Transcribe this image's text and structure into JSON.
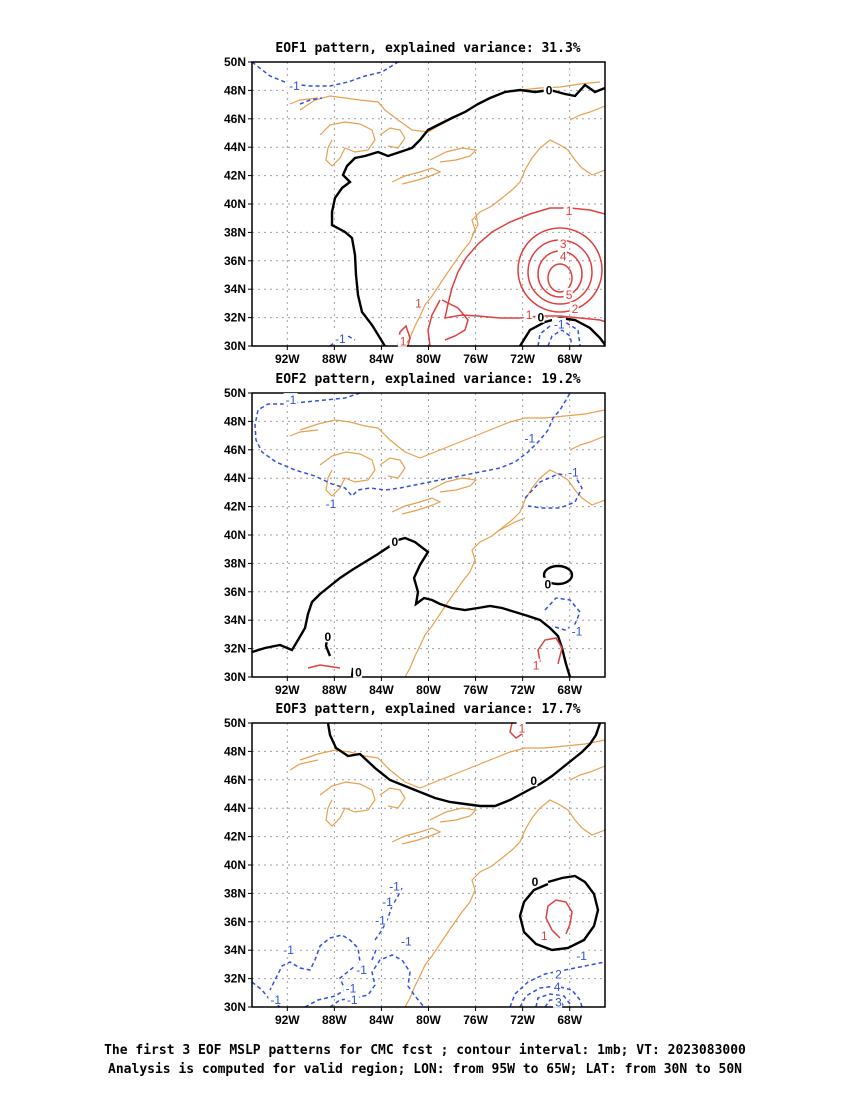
{
  "chart_data": [
    {
      "type": "contour_map",
      "title": "EOF1 pattern, explained variance: 31.3%",
      "x_ticks": [
        "92W",
        "88W",
        "84W",
        "80W",
        "76W",
        "72W",
        "68W"
      ],
      "y_ticks": [
        "30N",
        "32N",
        "34N",
        "36N",
        "38N",
        "40N",
        "42N",
        "44N",
        "46N",
        "48N",
        "50N"
      ],
      "xlim": [
        -95,
        -65
      ],
      "ylim": [
        30,
        50
      ],
      "grid": true,
      "contour_labels": [
        {
          "text": "-1",
          "color": "#3050e0",
          "lon": -91.5,
          "lat": 48.3
        },
        {
          "text": "0",
          "color": "#000000",
          "lon": -69.7,
          "lat": 48.0
        },
        {
          "text": "1",
          "color": "#e04040",
          "lon": -68.0,
          "lat": 39.5
        },
        {
          "text": "3",
          "color": "#e04040",
          "lon": -68.5,
          "lat": 37.2
        },
        {
          "text": "4",
          "color": "#e04040",
          "lon": -68.5,
          "lat": 36.3
        },
        {
          "text": "5",
          "color": "#e04040",
          "lon": -68.0,
          "lat": 33.6
        },
        {
          "text": "2",
          "color": "#e04040",
          "lon": -67.5,
          "lat": 32.6
        },
        {
          "text": "1",
          "color": "#e04040",
          "lon": -71.4,
          "lat": 32.2
        },
        {
          "text": "0",
          "color": "#000000",
          "lon": -70.4,
          "lat": 32.0
        },
        {
          "text": "-1",
          "color": "#3050e0",
          "lon": -69.0,
          "lat": 31.5
        },
        {
          "text": "1",
          "color": "#e04040",
          "lon": -80.8,
          "lat": 33.0
        },
        {
          "text": "1",
          "color": "#e04040",
          "lon": -82.1,
          "lat": 30.3
        },
        {
          "text": "-1",
          "color": "#3050e0",
          "lon": -87.6,
          "lat": 30.5
        }
      ]
    },
    {
      "type": "contour_map",
      "title": "EOF2 pattern, explained variance: 19.2%",
      "x_ticks": [
        "92W",
        "88W",
        "84W",
        "80W",
        "76W",
        "72W",
        "68W"
      ],
      "y_ticks": [
        "30N",
        "32N",
        "34N",
        "36N",
        "38N",
        "40N",
        "42N",
        "44N",
        "46N",
        "48N",
        "50N"
      ],
      "xlim": [
        -95,
        -65
      ],
      "ylim": [
        30,
        50
      ],
      "grid": true,
      "contour_labels": [
        {
          "text": "-1",
          "color": "#3050e0",
          "lon": -91.8,
          "lat": 49.5
        },
        {
          "text": "-1",
          "color": "#3050e0",
          "lon": -71.5,
          "lat": 46.8
        },
        {
          "text": "-1",
          "color": "#3050e0",
          "lon": -67.8,
          "lat": 44.4
        },
        {
          "text": "-1",
          "color": "#3050e0",
          "lon": -88.4,
          "lat": 42.2
        },
        {
          "text": "0",
          "color": "#000000",
          "lon": -82.8,
          "lat": 39.5
        },
        {
          "text": "0",
          "color": "#000000",
          "lon": -69.8,
          "lat": 36.5
        },
        {
          "text": "-1",
          "color": "#3050e0",
          "lon": -67.5,
          "lat": 33.2
        },
        {
          "text": "0",
          "color": "#000000",
          "lon": -88.5,
          "lat": 32.8
        },
        {
          "text": "1",
          "color": "#e04040",
          "lon": -70.8,
          "lat": 30.8
        },
        {
          "text": "0",
          "color": "#000000",
          "lon": -85.9,
          "lat": 30.3
        }
      ]
    },
    {
      "type": "contour_map",
      "title": "EOF3 pattern, explained variance: 17.7%",
      "x_ticks": [
        "92W",
        "88W",
        "84W",
        "80W",
        "76W",
        "72W",
        "68W"
      ],
      "y_ticks": [
        "30N",
        "32N",
        "34N",
        "36N",
        "38N",
        "40N",
        "42N",
        "44N",
        "46N",
        "48N",
        "50N"
      ],
      "xlim": [
        -95,
        -65
      ],
      "ylim": [
        30,
        50
      ],
      "grid": true,
      "contour_labels": [
        {
          "text": "1",
          "color": "#e04040",
          "lon": -72.0,
          "lat": 49.6
        },
        {
          "text": "0",
          "color": "#000000",
          "lon": -71.0,
          "lat": 45.9
        },
        {
          "text": "0",
          "color": "#000000",
          "lon": -70.9,
          "lat": 38.8
        },
        {
          "text": "-1",
          "color": "#3050e0",
          "lon": -83.0,
          "lat": 38.5
        },
        {
          "text": "-1",
          "color": "#3050e0",
          "lon": -83.6,
          "lat": 37.4
        },
        {
          "text": "-1",
          "color": "#3050e0",
          "lon": -84.2,
          "lat": 36.1
        },
        {
          "text": "1",
          "color": "#e04040",
          "lon": -70.1,
          "lat": 35.0
        },
        {
          "text": "-1",
          "color": "#3050e0",
          "lon": -82.0,
          "lat": 34.6
        },
        {
          "text": "-1",
          "color": "#3050e0",
          "lon": -92.0,
          "lat": 34.0
        },
        {
          "text": "-1",
          "color": "#3050e0",
          "lon": -67.1,
          "lat": 33.6
        },
        {
          "text": "-1",
          "color": "#3050e0",
          "lon": -85.8,
          "lat": 32.6
        },
        {
          "text": "2",
          "color": "#3050e0",
          "lon": -68.9,
          "lat": 32.3
        },
        {
          "text": "4",
          "color": "#3050e0",
          "lon": -69.0,
          "lat": 31.4
        },
        {
          "text": "-1",
          "color": "#3050e0",
          "lon": -86.7,
          "lat": 31.3
        },
        {
          "text": "3",
          "color": "#3050e0",
          "lon": -68.9,
          "lat": 30.3
        },
        {
          "text": "-1",
          "color": "#3050e0",
          "lon": -93.1,
          "lat": 30.5
        },
        {
          "text": "-1",
          "color": "#3050e0",
          "lon": -86.6,
          "lat": 30.5
        }
      ]
    }
  ],
  "caption": {
    "line1": "The first 3 EOF MSLP patterns for CMC fcst ; contour interval: 1mb; VT: 2023083000",
    "line2": "Analysis is computed for valid region; LON: from 95W to 65W; LAT: from 30N to 50N"
  },
  "colors": {
    "coast": "#e8a050",
    "positive": "#e04040",
    "negative": "#3050e0",
    "zero": "#000000",
    "grid": "#a0a0a0"
  }
}
